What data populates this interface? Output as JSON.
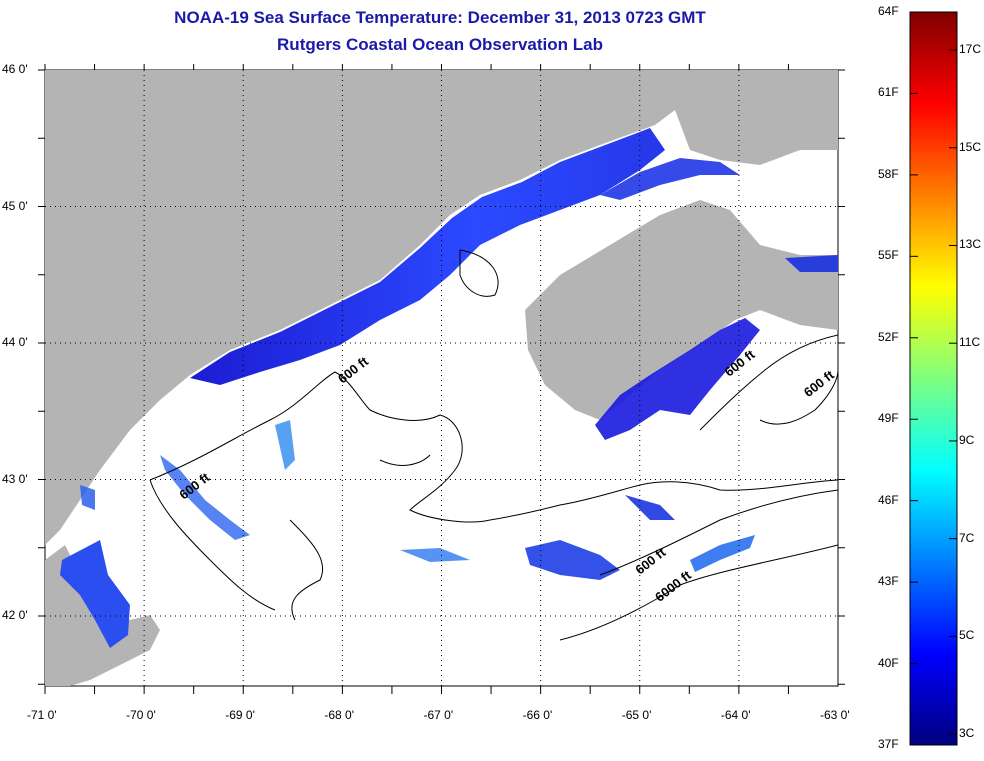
{
  "title": "NOAA-19 Sea Surface Temperature:  December 31, 2013 0723 GMT",
  "subtitle": "Rutgers Coastal Ocean Observation Lab",
  "map": {
    "lon_ticks": [
      "-71 0'",
      "-70 0'",
      "-69 0'",
      "-68 0'",
      "-67 0'",
      "-66 0'",
      "-65 0'",
      "-64 0'",
      "-63 0'"
    ],
    "lat_ticks": [
      "46 0'",
      "45 0'",
      "44 0'",
      "43 0'",
      "42 0'"
    ],
    "lon_range": [
      -71,
      -63
    ],
    "lat_range": [
      41.5,
      46
    ],
    "grid": "dotted",
    "land_color": "#b4b4b4",
    "no_data_color": "#ffffff",
    "contour_labels": [
      {
        "text": "600 ft",
        "lon": -68.0,
        "lat": 43.7
      },
      {
        "text": "600 ft",
        "lon": -69.6,
        "lat": 42.85
      },
      {
        "text": "600 ft",
        "lon": -64.1,
        "lat": 43.75
      },
      {
        "text": "600 ft",
        "lon": -63.3,
        "lat": 43.6
      },
      {
        "text": "600 ft",
        "lon": -65.0,
        "lat": 42.3
      },
      {
        "text": "6000 ft",
        "lon": -64.8,
        "lat": 42.1
      }
    ]
  },
  "colorbar": {
    "f_labels": [
      "64F",
      "61F",
      "58F",
      "55F",
      "52F",
      "49F",
      "46F",
      "43F",
      "40F",
      "37F"
    ],
    "c_labels": [
      "17C",
      "15C",
      "13C",
      "11C",
      "9C",
      "7C",
      "5C",
      "3C"
    ],
    "f_range": [
      37,
      64
    ],
    "colors": [
      "#00007f",
      "#0000ff",
      "#007fff",
      "#00ffff",
      "#7fff7f",
      "#ffff00",
      "#ff7f00",
      "#ff0000",
      "#7f0000"
    ]
  }
}
